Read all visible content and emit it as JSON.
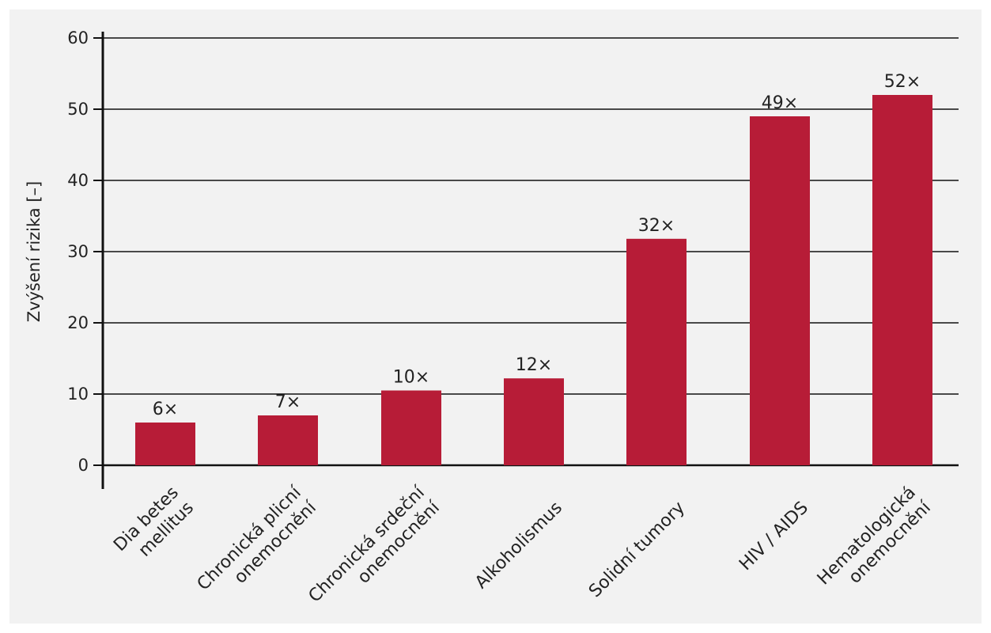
{
  "chart_data": {
    "type": "bar",
    "title": "",
    "xlabel": "",
    "ylabel": "Zvýšení rizika [–]",
    "ylim": [
      0,
      60
    ],
    "yticks": [
      0,
      10,
      20,
      30,
      40,
      50,
      60
    ],
    "grid": true,
    "bar_color": "#b71c37",
    "categories": [
      [
        "Dia betes",
        "mellitus"
      ],
      [
        "Chronická plicní",
        "onemocnění"
      ],
      [
        "Chronická srdeční",
        "onemocnění"
      ],
      [
        "Alkoholismus"
      ],
      [
        "Solidní tumory"
      ],
      [
        "HIV / AIDS"
      ],
      [
        "Hematologická",
        "onemocnění"
      ]
    ],
    "values": [
      6,
      7,
      10.5,
      12.2,
      31.8,
      49,
      52
    ],
    "value_labels": [
      "6×",
      "7×",
      "10×",
      "12×",
      "32×",
      "49×",
      "52×"
    ]
  }
}
